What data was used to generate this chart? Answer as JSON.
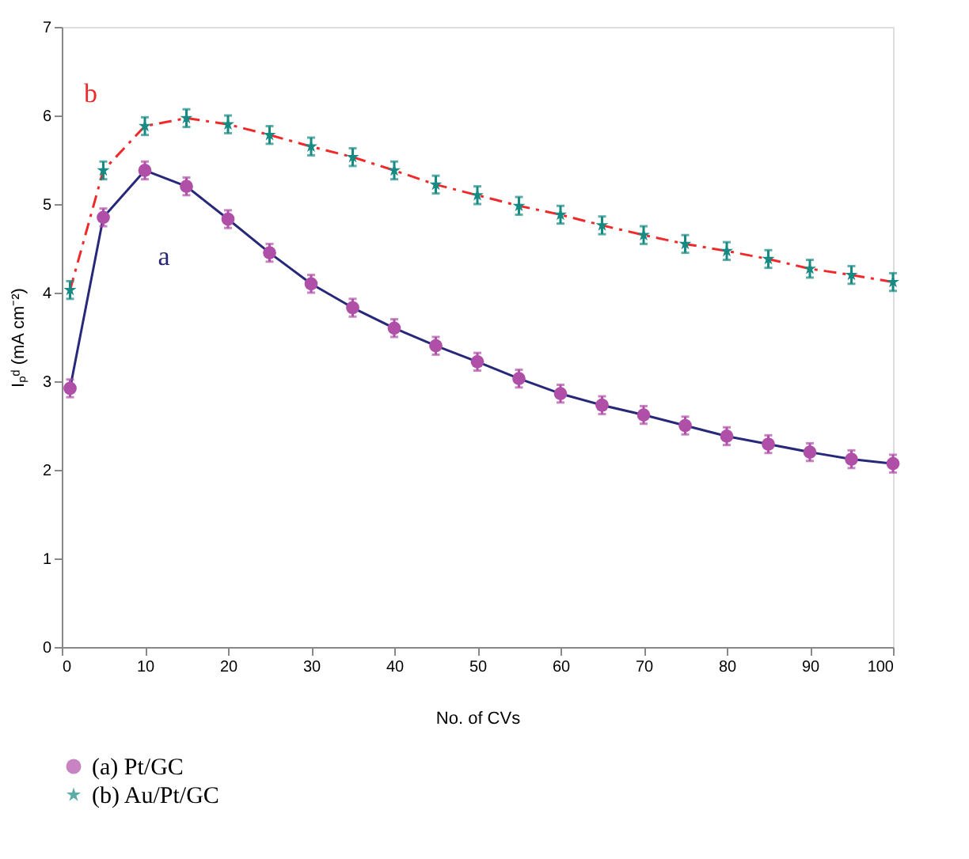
{
  "chart_data": {
    "type": "line",
    "xlabel": "No. of CVs",
    "ylabel": "Iₚᵈ (mA cm⁻²)",
    "x": [
      1,
      5,
      10,
      15,
      20,
      25,
      30,
      35,
      40,
      45,
      50,
      55,
      60,
      65,
      70,
      75,
      80,
      85,
      90,
      95,
      100
    ],
    "series": [
      {
        "name": "(a) Pt/GC",
        "color": "#27287a",
        "colors": [
          "#b04fa8",
          "#b04fa8",
          "#b04fa8",
          "#b04fa8",
          "#b04fa8",
          "#b04fa8",
          "#b04fa8",
          "#b04fa8",
          "#b04fa8",
          "#b04fa8",
          "#b04fa8",
          "#b04fa8",
          "#b04fa8",
          "#b04fa8",
          "#b04fa8",
          "#b04fa8",
          "#b04fa8",
          "#b04fa8",
          "#b04fa8",
          "#b04fa8",
          "#b04fa8"
        ],
        "line_style": "solid",
        "marker": "circle",
        "values": [
          2.92,
          4.85,
          5.38,
          5.2,
          4.83,
          4.45,
          4.1,
          3.83,
          3.6,
          3.4,
          3.22,
          3.03,
          2.86,
          2.73,
          2.62,
          2.5,
          2.38,
          2.29,
          2.2,
          2.12,
          2.07
        ],
        "errors": [
          0.1,
          0.1,
          0.1,
          0.1,
          0.1,
          0.1,
          0.1,
          0.1,
          0.1,
          0.1,
          0.1,
          0.1,
          0.1,
          0.1,
          0.1,
          0.1,
          0.1,
          0.1,
          0.1,
          0.1,
          0.1
        ]
      },
      {
        "name": "(b) Au/Pt/GC",
        "color": "#f02a2a",
        "colors": [
          "#178a83",
          "#178a83",
          "#178a83",
          "#178a83",
          "#178a83",
          "#178a83",
          "#178a83",
          "#178a83",
          "#178a83",
          "#178a83",
          "#178a83",
          "#178a83",
          "#178a83",
          "#178a83",
          "#178a83",
          "#178a83",
          "#178a83",
          "#178a83",
          "#178a83",
          "#178a83",
          "#178a83"
        ],
        "line_style": "dashed",
        "marker": "star",
        "values": [
          4.03,
          5.38,
          5.88,
          5.97,
          5.9,
          5.78,
          5.65,
          5.53,
          5.38,
          5.22,
          5.1,
          4.98,
          4.88,
          4.76,
          4.65,
          4.55,
          4.47,
          4.38,
          4.27,
          4.2,
          4.12
        ],
        "errors": [
          0.1,
          0.1,
          0.1,
          0.1,
          0.1,
          0.1,
          0.1,
          0.1,
          0.1,
          0.1,
          0.1,
          0.1,
          0.1,
          0.1,
          0.1,
          0.1,
          0.1,
          0.1,
          0.1,
          0.1,
          0.1
        ]
      }
    ],
    "annotations": [
      "a",
      "b"
    ],
    "xlim": [
      0,
      100
    ],
    "xticks": [
      0,
      10,
      20,
      30,
      40,
      50,
      60,
      70,
      80,
      90,
      100
    ],
    "ylim": [
      0,
      7
    ],
    "yticks": [
      0,
      1,
      2,
      3,
      4,
      5,
      6,
      7
    ],
    "grid": false,
    "legend": "bottom"
  }
}
